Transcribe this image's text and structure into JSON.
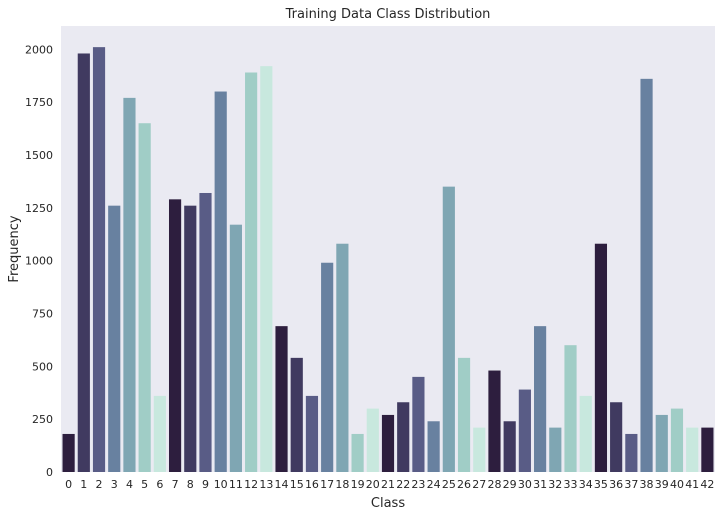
{
  "chart_data": {
    "type": "bar",
    "title": "Training Data Class Distribution",
    "xlabel": "Class",
    "ylabel": "Frequency",
    "categories": [
      "0",
      "1",
      "2",
      "3",
      "4",
      "5",
      "6",
      "7",
      "8",
      "9",
      "10",
      "11",
      "12",
      "13",
      "14",
      "15",
      "16",
      "17",
      "18",
      "19",
      "20",
      "21",
      "22",
      "23",
      "24",
      "25",
      "26",
      "27",
      "28",
      "29",
      "30",
      "31",
      "32",
      "33",
      "34",
      "35",
      "36",
      "37",
      "38",
      "39",
      "40",
      "41",
      "42"
    ],
    "values": [
      180,
      1980,
      2010,
      1260,
      1770,
      1650,
      360,
      1290,
      1260,
      1320,
      1800,
      1170,
      1890,
      1920,
      690,
      540,
      360,
      990,
      1080,
      180,
      300,
      270,
      330,
      450,
      240,
      1350,
      540,
      210,
      480,
      240,
      390,
      690,
      210,
      600,
      360,
      1080,
      330,
      180,
      1860,
      270,
      300,
      210,
      210
    ],
    "ylim": [
      0,
      2110
    ],
    "yticks": [
      0,
      250,
      500,
      750,
      1000,
      1250,
      1500,
      1750,
      2000
    ],
    "grid": false,
    "palette": [
      "#2d1e3e",
      "#403a60",
      "#595c86",
      "#6881a0",
      "#7fa6b3",
      "#a0cdc6",
      "#c8e8de"
    ],
    "background_color": "#eaeaf2"
  }
}
